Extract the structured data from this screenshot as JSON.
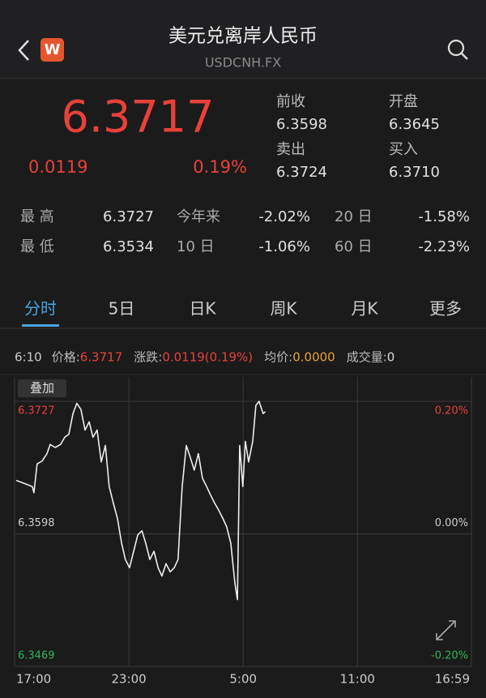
{
  "header": {
    "title": "美元兑离岸人民币",
    "subtitle": "USDCNH.FX",
    "logo": "W"
  },
  "quote": {
    "price": "6.3717",
    "change": "0.0119",
    "change_pct": "0.19%",
    "fields": [
      {
        "label": "前收",
        "value": "6.3598"
      },
      {
        "label": "开盘",
        "value": "6.3645"
      },
      {
        "label": "卖出",
        "value": "6.3724"
      },
      {
        "label": "买入",
        "value": "6.3710"
      }
    ]
  },
  "stats": {
    "rows": [
      [
        {
          "label": "最 高",
          "value": "6.3727"
        },
        {
          "label": "今年来",
          "value": "-2.02%"
        },
        {
          "label": "20 日",
          "value": "-1.58%"
        }
      ],
      [
        {
          "label": "最 低",
          "value": "6.3534"
        },
        {
          "label": "10 日",
          "value": "-1.06%"
        },
        {
          "label": "60 日",
          "value": "-2.23%"
        }
      ]
    ]
  },
  "tabs": {
    "items": [
      "分时",
      "5日",
      "日K",
      "周K",
      "月K",
      "更多"
    ],
    "active": 0
  },
  "info": {
    "time": "6:10",
    "items": [
      {
        "label": "价格:",
        "value": "6.3717",
        "color": "#e8413a"
      },
      {
        "label": "涨跌:",
        "value": "0.0119(0.19%)",
        "color": "#e8413a"
      },
      {
        "label": "均价:",
        "value": "0.0000",
        "color": "#e8a33d"
      },
      {
        "label": "成交量:",
        "value": "0",
        "color": "#dddddd"
      }
    ]
  },
  "overlay_button": "叠加",
  "chart_data": {
    "type": "line",
    "color": "#eeeeee",
    "x": [
      5,
      31,
      56,
      61,
      71,
      87,
      102,
      112,
      128,
      145,
      158,
      171,
      184,
      196,
      209,
      222,
      235,
      247,
      260,
      273,
      286,
      298,
      311,
      324,
      337,
      349,
      362,
      375,
      388,
      401,
      413,
      426,
      439,
      452,
      464,
      477,
      490,
      503,
      515,
      528,
      541,
      554,
      566,
      579,
      592,
      605,
      617,
      630,
      643,
      656,
      668,
      681,
      694,
      702,
      709,
      719,
      727,
      737,
      750,
      760,
      770,
      783,
      790
    ],
    "values": [
      6.365,
      6.3647,
      6.3644,
      6.3638,
      6.3666,
      6.3669,
      6.3676,
      6.3685,
      6.3682,
      6.3685,
      6.3692,
      6.3695,
      6.3715,
      6.3725,
      6.3719,
      6.3699,
      6.3707,
      6.3692,
      6.3699,
      6.3668,
      6.3684,
      6.3644,
      6.3628,
      6.3613,
      6.3589,
      6.3573,
      6.3565,
      6.3581,
      6.3597,
      6.3601,
      6.3589,
      6.3573,
      6.3581,
      6.3565,
      6.3557,
      6.3569,
      6.3561,
      6.3565,
      6.3573,
      6.3644,
      6.3684,
      6.3672,
      6.366,
      6.3676,
      6.3652,
      6.3644,
      6.3636,
      6.3628,
      6.3621,
      6.3613,
      6.3605,
      6.3589,
      6.355,
      6.3534,
      6.3684,
      6.3644,
      6.3688,
      6.3668,
      6.3688,
      6.3723,
      6.3727,
      6.3715,
      6.3717
    ],
    "xlim": [
      0,
      1439
    ],
    "xticks": [
      {
        "value": 0,
        "label": "17:00"
      },
      {
        "value": 360,
        "label": "23:00"
      },
      {
        "value": 720,
        "label": "5:00"
      },
      {
        "value": 1080,
        "label": "11:00"
      },
      {
        "value": 1439,
        "label": "16:59"
      }
    ],
    "ylim": [
      6.3469,
      6.3727
    ],
    "yticks": [
      6.3469,
      6.3598,
      6.3727
    ],
    "y2lim": [
      -0.2,
      0.2
    ],
    "y2ticks": [
      {
        "value": -0.2,
        "label": "-0.20%"
      },
      {
        "value": 0,
        "label": "0.00%"
      },
      {
        "value": 0.2,
        "label": "0.20%"
      }
    ],
    "tick_colors": [
      "#2fb35b",
      "#cccccc",
      "#e8413a"
    ],
    "grid": true
  }
}
